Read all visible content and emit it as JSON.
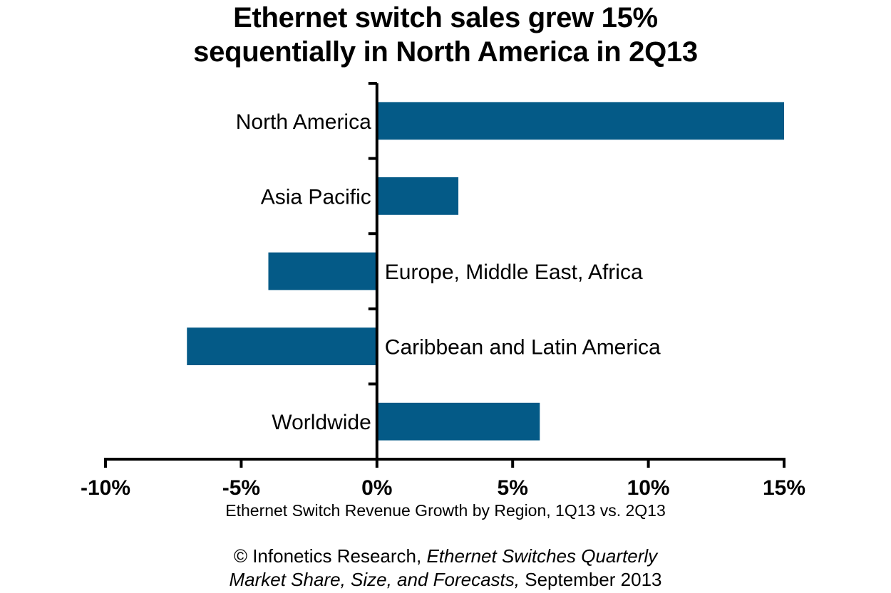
{
  "chart_data": {
    "type": "bar",
    "orientation": "horizontal",
    "title": "Ethernet switch sales grew 15% sequentially in North America in 2Q13",
    "title_lines": [
      "Ethernet switch sales grew 15%",
      "sequentially in North America in 2Q13"
    ],
    "xlabel": "Ethernet Switch Revenue Growth by Region, 1Q13 vs. 2Q13",
    "ylabel": "",
    "categories": [
      "North America",
      "Asia Pacific",
      "Europe, Middle East, Africa",
      "Caribbean and Latin America",
      "Worldwide"
    ],
    "values": [
      15,
      3,
      -4,
      -7,
      6
    ],
    "unit": "%",
    "xlim": [
      -10,
      15
    ],
    "x_ticks": [
      -10,
      -5,
      0,
      5,
      10,
      15
    ],
    "x_tick_labels": [
      "-10%",
      "-5%",
      "0%",
      "5%",
      "10%",
      "15%"
    ],
    "grid": false,
    "legend": "none",
    "bar_color": "#045A87",
    "source": {
      "prefix": "© Infonetics Research, ",
      "italic1": "Ethernet Switches Quarterly",
      "italic2": "Market Share, Size, and Forecasts,",
      "suffix": " September 2013"
    }
  }
}
